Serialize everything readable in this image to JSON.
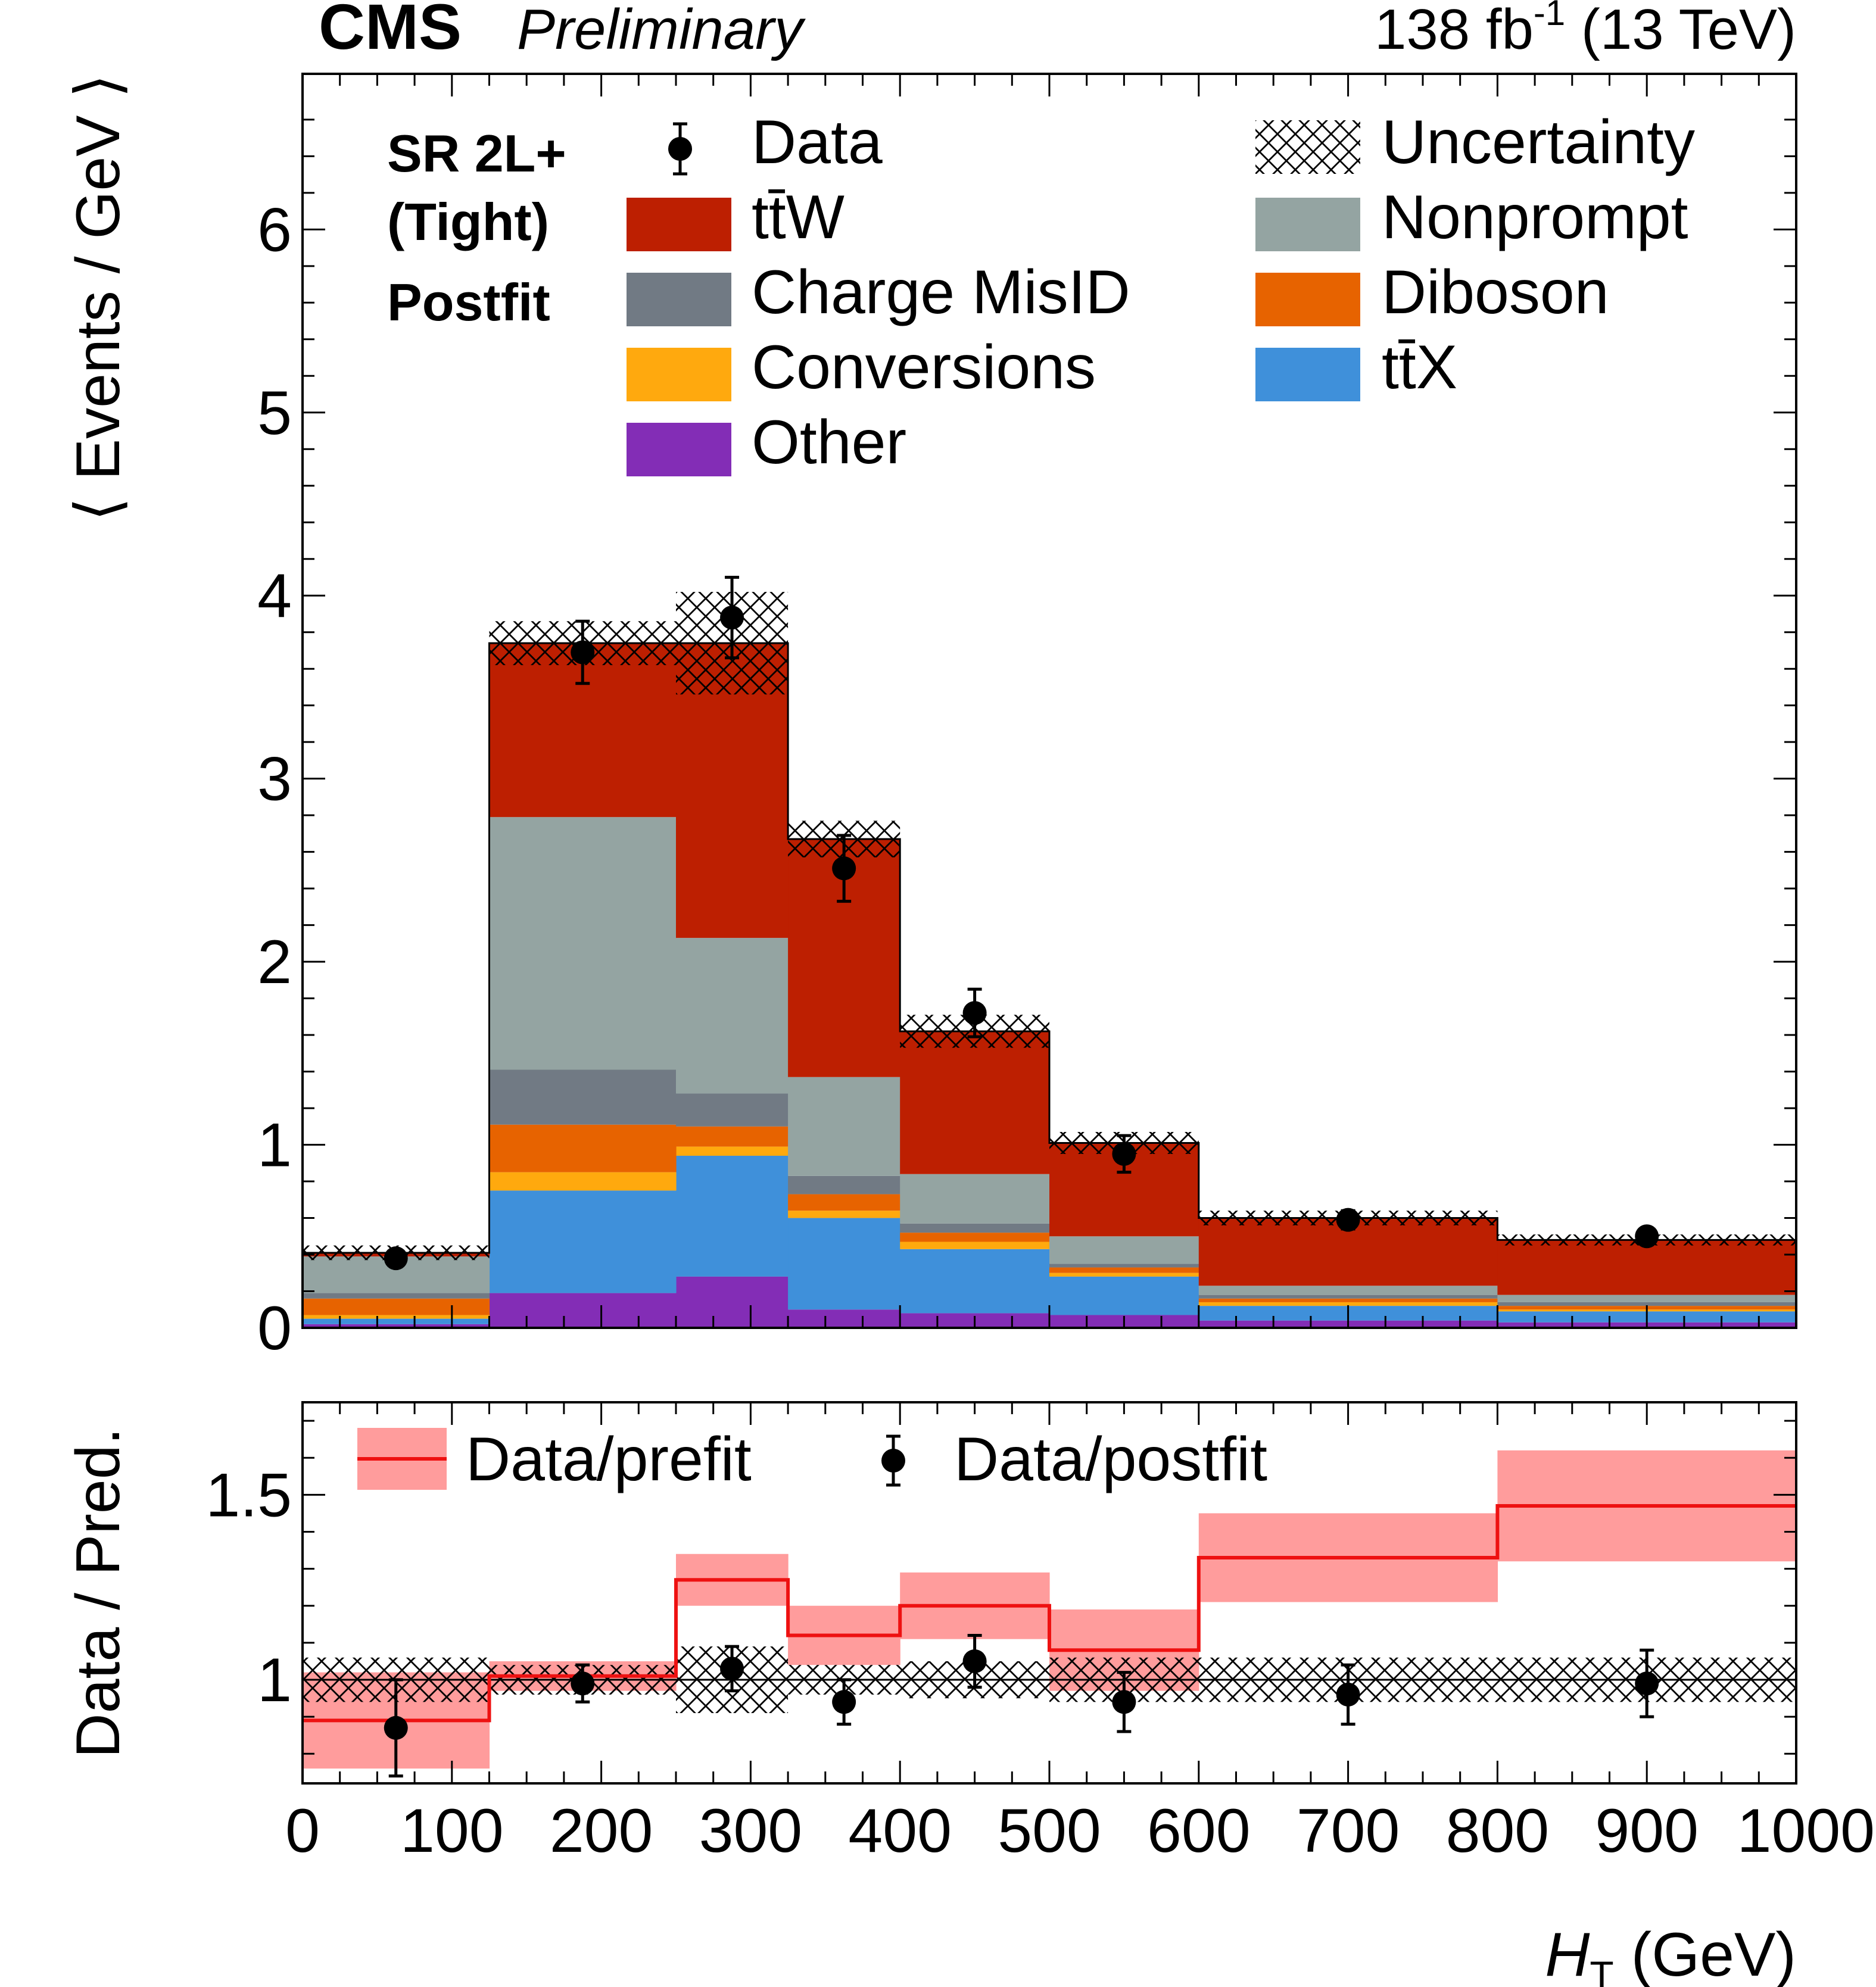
{
  "header": {
    "experiment": "CMS",
    "status": "Preliminary",
    "lumi_value": "138 fb",
    "lumi_exp": "-1",
    "lumi_energy": " (13 TeV)"
  },
  "region": {
    "line1": "SR 2L+",
    "line2": "(Tight)",
    "line3": "Postfit"
  },
  "legend": {
    "data": "Data",
    "uncertainty": "Uncertainty",
    "ttW": "tt̄W",
    "nonprompt": "Nonprompt",
    "charge_misid": "Charge MisID",
    "diboson": "Diboson",
    "conversions": "Conversions",
    "ttX": "tt̄X",
    "other": "Other",
    "ratio_prefit": "Data/prefit",
    "ratio_postfit": "Data/postfit"
  },
  "colors": {
    "ttW": "#bd1f01",
    "nonprompt": "#94a4a2",
    "charge_misid": "#717a84",
    "diboson": "#e76300",
    "conversions": "#ffa90e",
    "ttX": "#3f90da",
    "other": "#832db6",
    "prefit_band": "#ff9c9c",
    "prefit_line": "#ee1111"
  },
  "chart_data": {
    "type": "bar",
    "xlabel_main": "H",
    "xlabel_sub": "T",
    "xlabel_unit": " (GeV)",
    "ylabel": "⟨ Events / GeV ⟩",
    "ratio_ylabel": "Data / Pred.",
    "xlim": [
      0,
      1000
    ],
    "ylim": [
      0,
      6.85
    ],
    "ratio_ylim": [
      0.72,
      1.75
    ],
    "x_ticks": [
      "0",
      "100",
      "200",
      "300",
      "400",
      "500",
      "600",
      "700",
      "800",
      "900",
      "1000"
    ],
    "y_ticks": [
      "0",
      "1",
      "2",
      "3",
      "4",
      "5",
      "6"
    ],
    "ratio_y_ticks": [
      "1",
      "1.5"
    ],
    "bin_edges": [
      0,
      125,
      250,
      325,
      400,
      500,
      600,
      800,
      1000
    ],
    "stack_order": [
      "other",
      "ttX",
      "conversions",
      "diboson",
      "charge_misid",
      "nonprompt",
      "ttW"
    ],
    "series": [
      {
        "key": "other",
        "values": [
          0.02,
          0.19,
          0.28,
          0.1,
          0.08,
          0.07,
          0.04,
          0.03
        ]
      },
      {
        "key": "ttX",
        "values": [
          0.03,
          0.56,
          0.66,
          0.5,
          0.35,
          0.21,
          0.08,
          0.06
        ]
      },
      {
        "key": "conversions",
        "values": [
          0.02,
          0.1,
          0.05,
          0.04,
          0.04,
          0.02,
          0.02,
          0.01
        ]
      },
      {
        "key": "diboson",
        "values": [
          0.09,
          0.26,
          0.11,
          0.09,
          0.05,
          0.03,
          0.02,
          0.02
        ]
      },
      {
        "key": "charge_misid",
        "values": [
          0.03,
          0.3,
          0.18,
          0.1,
          0.05,
          0.02,
          0.02,
          0.02
        ]
      },
      {
        "key": "nonprompt",
        "values": [
          0.2,
          1.38,
          0.85,
          0.54,
          0.27,
          0.15,
          0.05,
          0.04
        ]
      },
      {
        "key": "ttW",
        "values": [
          0.02,
          0.95,
          1.61,
          1.3,
          0.78,
          0.51,
          0.37,
          0.3
        ]
      }
    ],
    "uncertainty": [
      0.04,
      0.12,
      0.28,
      0.1,
      0.09,
      0.06,
      0.04,
      0.03
    ],
    "data": {
      "x": [
        62.5,
        187.5,
        287.5,
        362.5,
        450,
        550,
        700,
        900
      ],
      "y": [
        0.38,
        3.69,
        3.88,
        2.51,
        1.72,
        0.95,
        0.59,
        0.5
      ],
      "err": [
        0.04,
        0.17,
        0.22,
        0.18,
        0.13,
        0.1,
        0.05,
        0.04
      ]
    },
    "ratio": {
      "prefit_center": [
        0.89,
        1.01,
        1.27,
        1.12,
        1.2,
        1.08,
        1.33,
        1.47
      ],
      "prefit_halfwidth": [
        0.13,
        0.04,
        0.07,
        0.08,
        0.09,
        0.11,
        0.12,
        0.15
      ],
      "postfit_unc": [
        0.06,
        0.04,
        0.09,
        0.04,
        0.05,
        0.06,
        0.06,
        0.06
      ],
      "postfit_y": [
        0.87,
        0.99,
        1.03,
        0.94,
        1.05,
        0.94,
        0.96,
        0.99
      ],
      "postfit_err": [
        0.13,
        0.05,
        0.06,
        0.06,
        0.07,
        0.08,
        0.08,
        0.09
      ]
    }
  }
}
